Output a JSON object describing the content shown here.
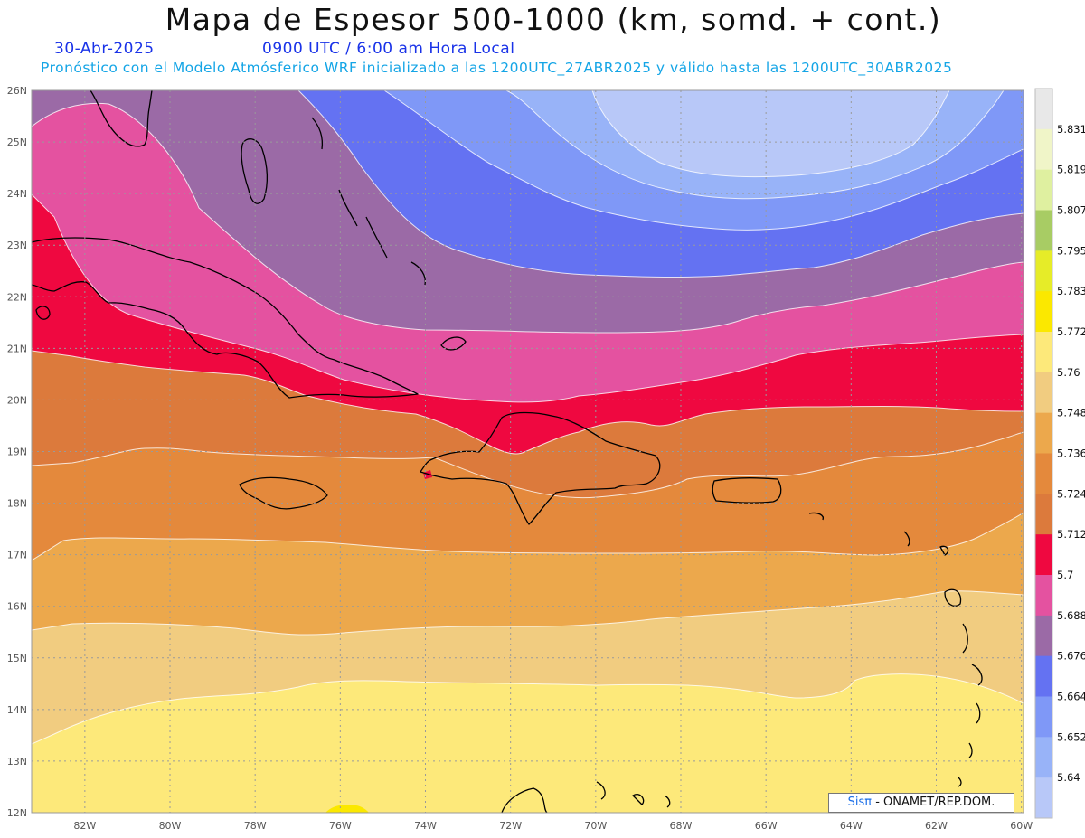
{
  "header": {
    "title": "Mapa de Espesor 500-1000 (km, somd. + cont.)",
    "date": "30-Abr-2025",
    "time": "0900 UTC / 6:00 am Hora Local",
    "subtitle": "Pronóstico con el Modelo Atmósferico WRF inicializado a las 1200UTC_27ABR2025 y válido hasta las  1200UTC_30ABR2025"
  },
  "credit": {
    "prefix": "Sisπ",
    "suffix": " - ONAMET/REP.DOM."
  },
  "axes": {
    "lon_range": [
      -83.25,
      -59.95
    ],
    "lat_range": [
      12,
      26
    ],
    "lon_ticks": [
      "82W",
      "80W",
      "78W",
      "76W",
      "74W",
      "72W",
      "70W",
      "68W",
      "66W",
      "64W",
      "62W",
      "60W"
    ],
    "lat_ticks": [
      "26N",
      "25N",
      "24N",
      "23N",
      "22N",
      "21N",
      "20N",
      "19N",
      "18N",
      "17N",
      "16N",
      "15N",
      "14N",
      "13N",
      "12N"
    ],
    "grid": true
  },
  "colorbar": {
    "labels": [
      "5.831",
      "5.819",
      "5.807",
      "5.795",
      "5.783",
      "5.772",
      "5.76",
      "5.748",
      "5.736",
      "5.724",
      "5.712",
      "5.7",
      "5.688",
      "5.676",
      "5.664",
      "5.652",
      "5.64"
    ],
    "colors": [
      "#e8e8e8",
      "#f0f5c8",
      "#dff0a0",
      "#a8cc64",
      "#e6ec28",
      "#fbe800",
      "#fde97a",
      "#f1cc80",
      "#eca84c",
      "#e4893c",
      "#dc7a3c",
      "#ef0840",
      "#e452a0",
      "#9b6aa6",
      "#6472f2",
      "#7f98f7",
      "#98b3f8",
      "#b8c8f8"
    ]
  },
  "map_fields": {
    "bands": [
      {
        "level": "5.76",
        "color": "#fde97a"
      },
      {
        "level": "5.748",
        "color": "#f1cc80"
      },
      {
        "level": "5.736",
        "color": "#eca84c"
      },
      {
        "level": "5.724",
        "color": "#e4893c"
      },
      {
        "level": "5.712",
        "color": "#dc7a3c"
      },
      {
        "level": "5.7",
        "color": "#ef0840"
      },
      {
        "level": "5.688",
        "color": "#e452a0"
      },
      {
        "level": "5.676",
        "color": "#9b6aa6"
      },
      {
        "level": "5.664",
        "color": "#6472f2"
      },
      {
        "level": "5.652",
        "color": "#7f98f7"
      },
      {
        "level": "5.64",
        "color": "#98b3f8"
      }
    ],
    "min_region_color": "#b8c8f8",
    "small_maximum_color": "#fbe800"
  }
}
